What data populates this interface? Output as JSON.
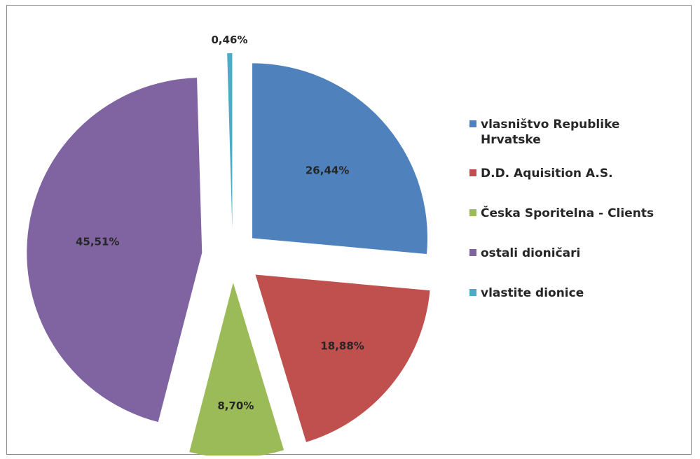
{
  "chart_data": {
    "type": "pie",
    "title": "",
    "legend_position": "right",
    "slices": [
      {
        "name": "vlasništvo Republike Hrvatske",
        "legend_lines": [
          "vlasništvo Republike",
          "Hrvatske"
        ],
        "value": 26.44,
        "label": "26,44%",
        "color": "#4f81bd"
      },
      {
        "name": "D.D. Aquisition A.S.",
        "legend_lines": [
          "D.D. Aquisition A.S."
        ],
        "value": 18.88,
        "label": "18,88%",
        "color": "#c0504d"
      },
      {
        "name": "Česka Sporitelna - Clients",
        "legend_lines": [
          "Česka Sporitelna - Clients"
        ],
        "value": 8.7,
        "label": "8,70%",
        "color": "#9bbb59"
      },
      {
        "name": "ostali dioničari",
        "legend_lines": [
          "ostali dioničari"
        ],
        "value": 45.51,
        "label": "45,51%",
        "color": "#8064a2"
      },
      {
        "name": "vlastite dionice",
        "legend_lines": [
          "vlastite dionice"
        ],
        "value": 0.46,
        "label": "0,46%",
        "color": "#4bacc6"
      }
    ]
  }
}
